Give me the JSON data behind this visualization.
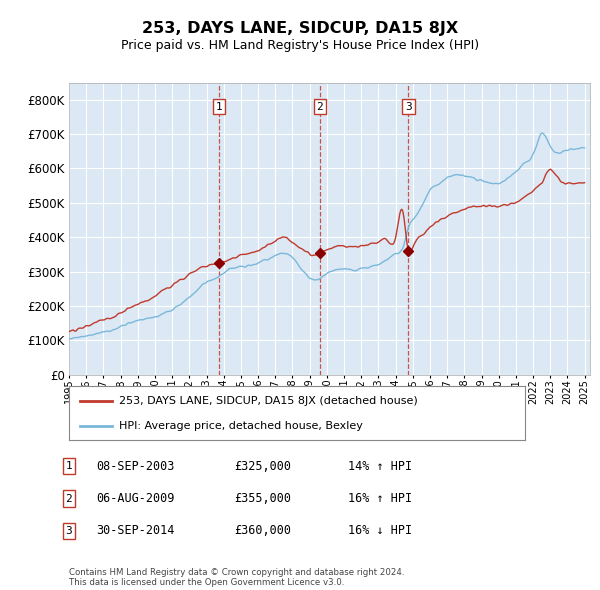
{
  "title": "253, DAYS LANE, SIDCUP, DA15 8JX",
  "subtitle": "Price paid vs. HM Land Registry's House Price Index (HPI)",
  "background_color": "#dce9f5",
  "plot_bg_color": "#dce9f5",
  "ylim": [
    0,
    850000
  ],
  "yticks": [
    0,
    100000,
    200000,
    300000,
    400000,
    500000,
    600000,
    700000,
    800000
  ],
  "x_start_year": 1995,
  "x_end_year": 2025,
  "sale_years": [
    2003.71,
    2009.59,
    2014.75
  ],
  "sale_prices": [
    325000,
    355000,
    360000
  ],
  "sale_labels": [
    "1",
    "2",
    "3"
  ],
  "sale_info": [
    {
      "label": "1",
      "date": "08-SEP-2003",
      "price": "£325,000",
      "pct": "14%",
      "dir": "↑"
    },
    {
      "label": "2",
      "date": "06-AUG-2009",
      "price": "£355,000",
      "pct": "16%",
      "dir": "↑"
    },
    {
      "label": "3",
      "date": "30-SEP-2014",
      "price": "£360,000",
      "pct": "16%",
      "dir": "↓"
    }
  ],
  "legend_line1": "253, DAYS LANE, SIDCUP, DA15 8JX (detached house)",
  "legend_line2": "HPI: Average price, detached house, Bexley",
  "footer": "Contains HM Land Registry data © Crown copyright and database right 2024.\nThis data is licensed under the Open Government Licence v3.0.",
  "hpi_color": "#7ab8d9",
  "price_color": "#c0392b",
  "vline_color": "#c0392b",
  "marker_box_color": "#c0392b",
  "marker_dot_color": "#8b0000"
}
